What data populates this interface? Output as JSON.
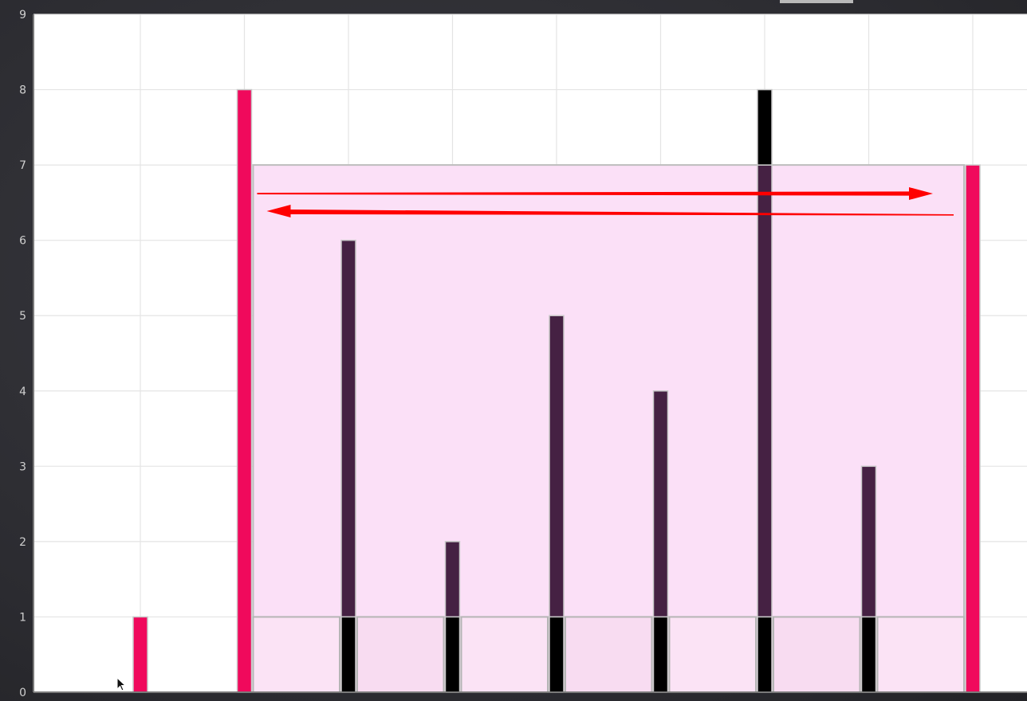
{
  "chart_data": {
    "type": "bar",
    "title": "",
    "xlabel": "",
    "ylabel": "",
    "ylim": [
      0,
      9
    ],
    "yticks": [
      0,
      1,
      2,
      3,
      4,
      5,
      6,
      7,
      8,
      9
    ],
    "grid": true,
    "x": [
      0,
      1,
      2,
      3,
      4,
      5,
      6,
      7,
      8
    ],
    "values": [
      1,
      8,
      6,
      2,
      5,
      4,
      8,
      3,
      7
    ],
    "bar_roles": [
      "boundary",
      "boundary",
      "inner",
      "inner",
      "inner",
      "inner",
      "inner",
      "inner",
      "boundary"
    ],
    "water_area": {
      "from_index": 1,
      "to_index": 8,
      "height": 7
    },
    "base_band": {
      "from_index": 1,
      "to_index": 8,
      "height": 1
    },
    "annotation_arrows": [
      "right",
      "left"
    ],
    "colors": {
      "boundary_bar": "#f0095c",
      "inner_bar": "#452143",
      "bar_above_water": "#000000",
      "bar_base_segment": "#000000",
      "water_fill": "#fbe0f7",
      "arrow": "#ff0000",
      "grid": "#e4e4e4",
      "plot_background": "#ffffff",
      "tick_label": "#cfcfcf"
    }
  }
}
